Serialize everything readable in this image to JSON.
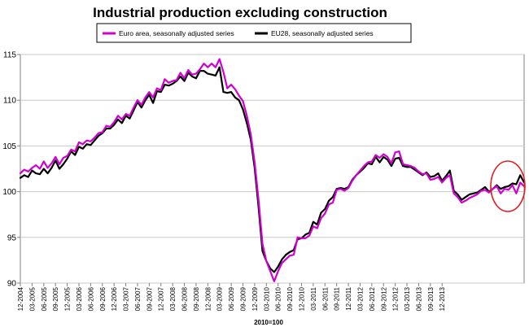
{
  "chart_data": {
    "type": "line",
    "title": "Industrial production excluding construction",
    "xlabel": "2010=100",
    "ylabel": "",
    "ylim": [
      90,
      115
    ],
    "yticks": [
      90,
      95,
      100,
      105,
      110,
      115
    ],
    "grid": "horizontal",
    "legend_position": "top",
    "x_labels": [
      "12-2004",
      "03-2005",
      "06-2005",
      "09-2005",
      "12-2005",
      "03-2006",
      "06-2006",
      "09-2006",
      "12-2006",
      "03-2007",
      "06-2007",
      "09-2007",
      "12-2007",
      "03-2008",
      "06-2008",
      "09-2008",
      "12-2008",
      "03-2009",
      "06-2009",
      "09-2009",
      "12-2009",
      "03-2010",
      "06-2010",
      "09-2010",
      "12-2010",
      "03-2011",
      "06-2011",
      "09-2011",
      "12-2011",
      "03-2012",
      "06-2012",
      "09-2012",
      "12-2012",
      "03-2013",
      "06-2013",
      "09-2013",
      "12-2013"
    ],
    "series": [
      {
        "name": "Euro area, seasonally adjusted series",
        "color": "#d100d1",
        "values": [
          102.0,
          102.4,
          102.2,
          102.6,
          102.9,
          102.5,
          103.3,
          102.6,
          103.1,
          103.8,
          103.0,
          103.7,
          103.9,
          104.6,
          104.4,
          105.4,
          105.2,
          105.6,
          105.5,
          105.9,
          106.4,
          106.5,
          107.2,
          107.1,
          107.6,
          108.3,
          107.9,
          108.5,
          108.3,
          109.2,
          110.0,
          109.5,
          110.3,
          110.9,
          110.3,
          111.3,
          111.1,
          112.3,
          111.9,
          112.1,
          112.2,
          113.0,
          112.4,
          113.3,
          112.8,
          112.9,
          113.4,
          114.0,
          113.6,
          114.0,
          113.6,
          114.5,
          113.1,
          111.3,
          111.7,
          111.2,
          110.5,
          109.9,
          108.3,
          106.3,
          103.2,
          99.1,
          94.3,
          92.4,
          91.3,
          90.2,
          91.3,
          92.2,
          92.6,
          93.0,
          93.1,
          95.0,
          94.9,
          94.9,
          95.2,
          96.2,
          96.0,
          97.1,
          97.6,
          98.6,
          98.8,
          100.2,
          100.3,
          100.1,
          100.4,
          101.2,
          101.8,
          102.3,
          102.8,
          103.2,
          103.3,
          104.0,
          103.7,
          104.1,
          103.8,
          103.1,
          104.3,
          104.4,
          103.0,
          102.9,
          102.8,
          102.6,
          102.2,
          101.9,
          102.0,
          101.3,
          101.4,
          101.6,
          101.0,
          101.5,
          101.8,
          99.8,
          99.4,
          98.8,
          99.0,
          99.3,
          99.5,
          99.7,
          100.1,
          100.2,
          99.9,
          100.3,
          100.6,
          99.8,
          100.3,
          100.2,
          100.7,
          99.8,
          101.0,
          100.6
        ]
      },
      {
        "name": "EU28, seasonally adjusted series",
        "color": "#000000",
        "values": [
          101.5,
          101.8,
          101.6,
          102.3,
          102.0,
          101.9,
          102.5,
          102.0,
          102.6,
          103.4,
          102.5,
          103.0,
          103.6,
          104.4,
          104.0,
          104.9,
          104.7,
          105.2,
          105.1,
          105.6,
          106.1,
          106.4,
          106.9,
          106.9,
          107.3,
          107.9,
          107.5,
          108.3,
          108.0,
          108.9,
          109.8,
          109.2,
          110.0,
          110.6,
          109.7,
          111.0,
          110.9,
          111.7,
          111.6,
          111.8,
          112.1,
          112.6,
          112.1,
          113.0,
          112.6,
          112.4,
          113.2,
          113.2,
          112.9,
          112.8,
          112.7,
          113.6,
          110.9,
          110.8,
          110.9,
          110.3,
          110.0,
          109.0,
          107.5,
          105.7,
          102.6,
          98.3,
          93.5,
          92.4,
          91.6,
          91.2,
          91.8,
          92.6,
          93.1,
          93.4,
          93.6,
          94.8,
          94.9,
          95.3,
          95.5,
          96.7,
          96.4,
          97.7,
          98.1,
          99.0,
          99.4,
          100.3,
          100.4,
          100.3,
          100.5,
          101.3,
          101.8,
          102.2,
          102.6,
          103.1,
          103.0,
          103.8,
          103.2,
          103.8,
          103.5,
          102.8,
          103.6,
          103.7,
          102.8,
          102.7,
          102.7,
          102.4,
          102.1,
          101.8,
          102.1,
          101.6,
          101.7,
          102.0,
          101.2,
          101.7,
          102.3,
          100.1,
          99.7,
          99.1,
          99.4,
          99.7,
          99.8,
          99.9,
          100.2,
          100.5,
          100.0,
          100.3,
          100.7,
          100.3,
          100.5,
          100.6,
          100.9,
          100.8,
          101.8,
          101.0
        ]
      }
    ]
  }
}
